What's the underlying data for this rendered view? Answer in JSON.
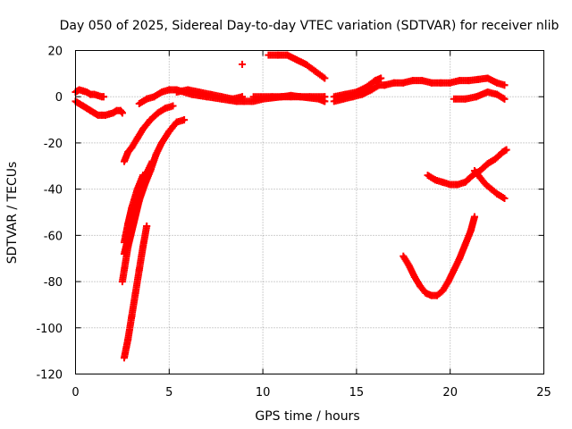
{
  "chart_data": {
    "type": "scatter",
    "title": "Day 050 of 2025, Sidereal Day-to-day VTEC variation (SDTVAR) for receiver nlib",
    "xlabel": "GPS time / hours",
    "ylabel": "SDTVAR / TECUs",
    "xlim": [
      0,
      25
    ],
    "ylim": [
      -120,
      20
    ],
    "xticks": [
      0,
      5,
      10,
      15,
      20,
      25
    ],
    "yticks": [
      -120,
      -100,
      -80,
      -60,
      -40,
      -20,
      0,
      20
    ],
    "grid": true,
    "marker": "+",
    "color": "#ff0000",
    "series": [
      {
        "points": [
          [
            0.0,
            2
          ],
          [
            0.2,
            3
          ],
          [
            0.4,
            2.5
          ],
          [
            0.6,
            2
          ],
          [
            0.8,
            1
          ],
          [
            1.0,
            1
          ],
          [
            1.2,
            0.5
          ],
          [
            1.4,
            0
          ],
          [
            1.5,
            0
          ]
        ]
      },
      {
        "points": [
          [
            0.0,
            -2
          ],
          [
            0.2,
            -3
          ],
          [
            0.4,
            -4
          ],
          [
            0.6,
            -5
          ],
          [
            0.8,
            -6
          ],
          [
            1.0,
            -7
          ],
          [
            1.2,
            -8
          ],
          [
            1.4,
            -8
          ],
          [
            1.6,
            -8
          ],
          [
            1.8,
            -7.5
          ],
          [
            2.0,
            -7
          ],
          [
            2.2,
            -6
          ],
          [
            2.4,
            -6
          ],
          [
            2.5,
            -7
          ]
        ]
      },
      {
        "points": [
          [
            3.4,
            -3
          ],
          [
            3.8,
            -1
          ],
          [
            4.2,
            0
          ],
          [
            4.6,
            2
          ],
          [
            5.0,
            3
          ],
          [
            5.4,
            3
          ],
          [
            5.8,
            2
          ],
          [
            6.2,
            1
          ],
          [
            6.6,
            0.5
          ],
          [
            7.0,
            0
          ],
          [
            7.4,
            -0.5
          ],
          [
            7.8,
            -1
          ],
          [
            8.2,
            -1.5
          ],
          [
            8.6,
            -2
          ],
          [
            9.0,
            -2
          ],
          [
            9.4,
            -2
          ]
        ]
      },
      {
        "points": [
          [
            5.4,
            2
          ],
          [
            6.0,
            3
          ],
          [
            6.6,
            2
          ],
          [
            7.2,
            1
          ],
          [
            7.8,
            0
          ],
          [
            8.4,
            -1
          ],
          [
            8.9,
            0
          ]
        ]
      },
      {
        "points": [
          [
            8.9,
            14
          ]
        ]
      },
      {
        "points": [
          [
            9.5,
            -2
          ],
          [
            10.0,
            -1
          ],
          [
            10.5,
            -0.5
          ],
          [
            11.0,
            0
          ],
          [
            11.5,
            0.5
          ],
          [
            12.0,
            0
          ],
          [
            12.5,
            -0.5
          ],
          [
            13.0,
            -1
          ],
          [
            13.3,
            -2
          ]
        ]
      },
      {
        "points": [
          [
            9.5,
            0
          ],
          [
            10.5,
            0
          ],
          [
            11.5,
            0
          ],
          [
            12.5,
            0
          ],
          [
            13.3,
            0
          ]
        ]
      },
      {
        "points": [
          [
            10.3,
            18
          ],
          [
            10.8,
            18
          ],
          [
            11.3,
            18
          ],
          [
            11.8,
            16
          ],
          [
            12.3,
            14
          ],
          [
            12.8,
            11
          ],
          [
            13.3,
            8
          ]
        ]
      },
      {
        "points": [
          [
            13.8,
            -2
          ],
          [
            14.3,
            -1
          ],
          [
            14.8,
            0
          ],
          [
            15.3,
            1
          ],
          [
            15.8,
            3
          ],
          [
            16.2,
            5
          ],
          [
            16.5,
            5
          ]
        ]
      },
      {
        "points": [
          [
            13.8,
            0
          ],
          [
            14.4,
            1
          ],
          [
            15.0,
            2
          ],
          [
            15.5,
            4
          ],
          [
            16.0,
            7
          ],
          [
            16.3,
            8
          ]
        ]
      },
      {
        "points": [
          [
            16.5,
            5
          ],
          [
            17.0,
            6
          ],
          [
            17.5,
            6
          ],
          [
            18.0,
            7
          ],
          [
            18.5,
            7
          ],
          [
            19.0,
            6
          ],
          [
            19.5,
            6
          ],
          [
            20.0,
            6
          ],
          [
            20.5,
            7
          ],
          [
            21.0,
            7
          ],
          [
            21.5,
            7.5
          ],
          [
            22.0,
            8
          ],
          [
            22.5,
            6
          ],
          [
            22.9,
            5
          ]
        ]
      },
      {
        "points": [
          [
            20.2,
            -1
          ],
          [
            20.8,
            -1
          ],
          [
            21.4,
            0
          ],
          [
            22.0,
            2
          ],
          [
            22.5,
            1
          ],
          [
            22.9,
            -1
          ]
        ]
      },
      {
        "points": [
          [
            2.5,
            -80
          ],
          [
            2.8,
            -65
          ],
          [
            3.1,
            -55
          ],
          [
            3.4,
            -45
          ],
          [
            3.7,
            -38
          ],
          [
            4.0,
            -32
          ],
          [
            4.3,
            -25
          ],
          [
            4.6,
            -20
          ],
          [
            5.0,
            -15
          ],
          [
            5.4,
            -11
          ],
          [
            5.8,
            -10
          ]
        ]
      },
      {
        "points": [
          [
            2.6,
            -68
          ],
          [
            2.9,
            -58
          ],
          [
            3.2,
            -48
          ],
          [
            3.5,
            -40
          ],
          [
            3.8,
            -33
          ],
          [
            4.1,
            -28
          ]
        ]
      },
      {
        "points": [
          [
            2.6,
            -63
          ],
          [
            2.8,
            -55
          ],
          [
            3.0,
            -48
          ],
          [
            3.3,
            -40
          ],
          [
            3.6,
            -34
          ]
        ]
      },
      {
        "points": [
          [
            2.6,
            -113
          ],
          [
            2.8,
            -105
          ],
          [
            3.0,
            -95
          ],
          [
            3.2,
            -85
          ],
          [
            3.4,
            -75
          ],
          [
            3.6,
            -65
          ],
          [
            3.8,
            -56
          ]
        ]
      },
      {
        "points": [
          [
            2.6,
            -28
          ],
          [
            2.8,
            -24
          ],
          [
            3.0,
            -22
          ],
          [
            3.3,
            -18
          ],
          [
            3.6,
            -14
          ],
          [
            4.0,
            -10
          ],
          [
            4.4,
            -7
          ],
          [
            4.8,
            -5
          ],
          [
            5.2,
            -4
          ]
        ]
      },
      {
        "points": [
          [
            17.5,
            -69
          ],
          [
            17.8,
            -73
          ],
          [
            18.1,
            -78
          ],
          [
            18.4,
            -82
          ],
          [
            18.7,
            -85
          ],
          [
            19.0,
            -86
          ],
          [
            19.3,
            -86
          ],
          [
            19.6,
            -84
          ],
          [
            19.9,
            -80
          ],
          [
            20.2,
            -75
          ],
          [
            20.5,
            -70
          ],
          [
            20.8,
            -64
          ],
          [
            21.1,
            -58
          ],
          [
            21.3,
            -52
          ]
        ]
      },
      {
        "points": [
          [
            18.8,
            -34
          ],
          [
            19.2,
            -36
          ],
          [
            19.6,
            -37
          ],
          [
            20.0,
            -38
          ],
          [
            20.4,
            -38
          ],
          [
            20.8,
            -37
          ],
          [
            21.2,
            -34
          ],
          [
            21.6,
            -32
          ],
          [
            22.0,
            -29
          ],
          [
            22.4,
            -27
          ],
          [
            22.8,
            -24
          ],
          [
            23.0,
            -23
          ]
        ]
      },
      {
        "points": [
          [
            21.3,
            -32
          ],
          [
            21.6,
            -35
          ],
          [
            21.9,
            -38
          ],
          [
            22.2,
            -40
          ],
          [
            22.5,
            -42
          ],
          [
            22.9,
            -44
          ]
        ]
      }
    ]
  }
}
